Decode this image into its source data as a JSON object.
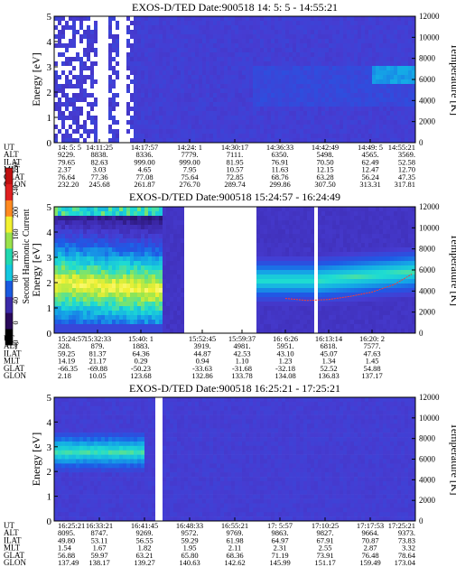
{
  "panels": [
    {
      "title": "EXOS-D/TED   Date:900518  14: 5: 5 - 14:55:21",
      "ylabel_left": "Energy [eV]",
      "ylabel_right": "Temperature [K]",
      "left_ticks": [
        "0",
        "1",
        "2",
        "3",
        "4",
        "5"
      ],
      "right_ticks": [
        "0",
        "2000",
        "4000",
        "6000",
        "8000",
        "10000",
        "12000"
      ],
      "row_labels": [
        "UT",
        "ALT",
        "ILAT",
        "MLT",
        "GLAT",
        "GLON"
      ],
      "columns": [
        [
          "14: 5: 5",
          "9229.",
          "79.65",
          "2.37",
          "76.64",
          "232.20"
        ],
        [
          "14:11:25",
          "8838.",
          "82.63",
          "3.03",
          "77.36",
          "245.68"
        ],
        [
          "14:17:57",
          "8336.",
          "999.00",
          "4.65",
          "77.08",
          "261.87"
        ],
        [
          "14:24: 1",
          "7779.",
          "999.00",
          "7.95",
          "75.64",
          "276.70"
        ],
        [
          "14:30:17",
          "7111.",
          "81.95",
          "10.57",
          "72.85",
          "289.74"
        ],
        [
          "14:36:33",
          "6350.",
          "76.91",
          "11.63",
          "68.76",
          "299.86"
        ],
        [
          "14:42:49",
          "5498.",
          "70.50",
          "12.15",
          "63.28",
          "307.50"
        ],
        [
          "14:49: 5",
          "4565.",
          "62.49",
          "12.47",
          "56.24",
          "313.31"
        ],
        [
          "14:55:21",
          "3569.",
          "52.58",
          "12.70",
          "47.35",
          "317.81"
        ]
      ]
    },
    {
      "title": "EXOS-D/TED   Date:900518  15:24:57 - 16:24:49",
      "ylabel_left": "Energy [eV]",
      "ylabel_right": "Temperature [K]",
      "left_ticks": [
        "0",
        "1",
        "2",
        "3",
        "4",
        "5"
      ],
      "right_ticks": [
        "0",
        "2000",
        "4000",
        "6000",
        "8000",
        "10000",
        "12000"
      ],
      "row_labels": [
        "UT",
        "ALT",
        "ILAT",
        "MLT",
        "GLAT",
        "GLON"
      ],
      "columns": [
        [
          "15:24:57",
          "328.",
          "59.25",
          "14.19",
          "-66.35",
          "2.18"
        ],
        [
          "15:32:33",
          "879.",
          "81.37",
          "21.17",
          "-69.88",
          "10.05"
        ],
        [
          "15:40: 1",
          "1883.",
          "64.36",
          "0.29",
          "-50.23",
          "123.68"
        ],
        [
          "15:52:45",
          "3919.",
          "44.87",
          "0.94",
          "-33.63",
          "132.86"
        ],
        [
          "15:59:37",
          "4981.",
          "42.53",
          "1.10",
          "-31.68",
          "133.78"
        ],
        [
          "16: 6:26",
          "5951.",
          "43.10",
          "1.23",
          "-32.18",
          "134.08"
        ],
        [
          "16:13:14",
          "6818.",
          "45.07",
          "1.34",
          "52.52",
          "136.83"
        ],
        [
          "16:20: 2",
          "7577.",
          "47.63",
          "1.45",
          "54.88",
          "137.17"
        ]
      ],
      "colorbar": {
        "label": "Second Harmonic Current",
        "ticks": [
          "-40",
          "0",
          "40",
          "80",
          "120",
          "160",
          "200",
          "240",
          "280"
        ]
      },
      "red_fit_line": {
        "t": [
          0.64,
          0.7,
          0.76,
          0.82,
          0.88,
          0.94,
          0.99
        ],
        "temperature_K": [
          3300,
          3100,
          3200,
          3500,
          3900,
          4600,
          5600
        ]
      }
    },
    {
      "title": "EXOS-D/TED   Date:900518  16:25:21 - 17:25:21",
      "ylabel_left": "Energy [eV]",
      "ylabel_right": "Temperature [K]",
      "left_ticks": [
        "0",
        "1",
        "2",
        "3",
        "4",
        "5"
      ],
      "right_ticks": [
        "0",
        "2000",
        "4000",
        "6000",
        "8000",
        "10000",
        "12000"
      ],
      "row_labels": [
        "UT",
        "ALT",
        "ILAT",
        "MLT",
        "GLAT",
        "GLON"
      ],
      "columns": [
        [
          "16:25:21",
          "8095.",
          "49.80",
          "1.54",
          "56.88",
          "137.49"
        ],
        [
          "16:33:21",
          "8747.",
          "53.11",
          "1.67",
          "59.97",
          "138.17"
        ],
        [
          "16:41:45",
          "9269.",
          "56.55",
          "1.82",
          "63.21",
          "139.27"
        ],
        [
          "16:48:33",
          "9572.",
          "59.29",
          "1.95",
          "65.80",
          "140.63"
        ],
        [
          "16:55:21",
          "9769.",
          "61.98",
          "2.11",
          "68.36",
          "142.62"
        ],
        [
          "17: 5:57",
          "9863.",
          "64.97",
          "2.31",
          "71.19",
          "145.99"
        ],
        [
          "17:10:25",
          "9827.",
          "67.91",
          "2.55",
          "73.91",
          "151.17"
        ],
        [
          "17:17:53",
          "9664.",
          "70.87",
          "2.87",
          "76.48",
          "159.49"
        ],
        [
          "17:25:21",
          "9373.",
          "73.83",
          "3.32",
          "78.64",
          "173.04"
        ]
      ]
    }
  ],
  "chart_data": [
    {
      "type": "heatmap",
      "title": "EXOS-D/TED   Date:900518  14: 5: 5 - 14:55:21",
      "xlabel": "UT",
      "ylabel": "Energy [eV]",
      "y2label": "Temperature [K]",
      "ylim": [
        0,
        5
      ],
      "y2lim": [
        0,
        12000
      ],
      "x": [
        "14: 5: 5",
        "14:11:25",
        "14:17:57",
        "14:24: 1",
        "14:30:17",
        "14:36:33",
        "14:42:49",
        "14:49: 5",
        "14:55:21"
      ],
      "no_data_gaps_fraction": [
        [
          0.125,
          0.145
        ],
        [
          0.185,
          0.195
        ]
      ]
    },
    {
      "type": "heatmap",
      "title": "EXOS-D/TED   Date:900518  15:24:57 - 16:24:49",
      "xlabel": "UT",
      "ylabel": "Energy [eV]",
      "y2label": "Temperature [K]",
      "ylim": [
        0,
        5
      ],
      "y2lim": [
        0,
        12000
      ],
      "x": [
        "15:24:57",
        "15:32:33",
        "15:40: 1",
        "15:52:45",
        "15:59:37",
        "16: 6:26",
        "16:13:14",
        "16:20: 2"
      ],
      "colorbar_label": "Second Harmonic Current",
      "colorbar_range": [
        -40,
        280
      ],
      "no_data_gaps_fraction": [
        [
          0.36,
          0.56
        ],
        [
          0.72,
          0.73
        ]
      ]
    },
    {
      "type": "heatmap",
      "title": "EXOS-D/TED   Date:900518  16:25:21 - 17:25:21",
      "xlabel": "UT",
      "ylabel": "Energy [eV]",
      "y2label": "Temperature [K]",
      "ylim": [
        0,
        5
      ],
      "y2lim": [
        0,
        12000
      ],
      "x": [
        "16:25:21",
        "16:33:21",
        "16:41:45",
        "16:48:33",
        "16:55:21",
        "17: 5:57",
        "17:10:25",
        "17:17:53",
        "17:25:21"
      ],
      "no_data_gaps_fraction": [
        [
          0.285,
          0.3
        ]
      ]
    }
  ],
  "colors": {
    "background_dark": "#3b2aa8",
    "background_mid": "#4a3fc4",
    "cyan": "#13c8e0",
    "blue": "#1a5ae0",
    "green": "#9be24a",
    "yellow": "#f2f230",
    "red_line": "#ff3b2e"
  }
}
